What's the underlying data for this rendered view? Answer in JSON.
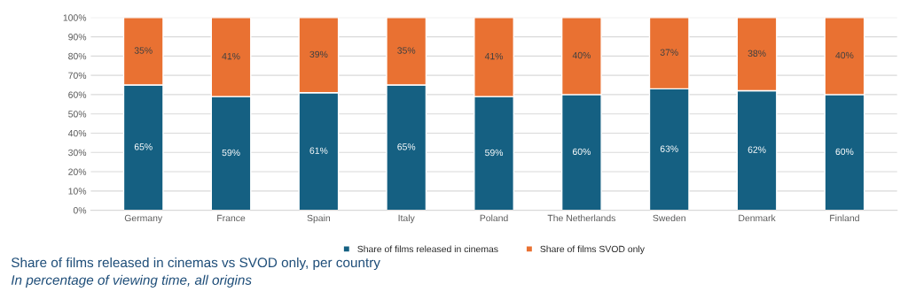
{
  "chart_data": {
    "type": "bar",
    "stacked": true,
    "title": "Share of films released in cinemas vs SVOD only, per country",
    "subtitle": "In percentage of viewing time, all origins",
    "categories": [
      "Germany",
      "France",
      "Spain",
      "Italy",
      "Poland",
      "The Netherlands",
      "Sweden",
      "Denmark",
      "Finland"
    ],
    "series": [
      {
        "name": "Share of films released in cinemas",
        "color": "#156082",
        "values": [
          65,
          59,
          61,
          65,
          59,
          60,
          63,
          62,
          60
        ],
        "value_labels": [
          "65%",
          "59%",
          "61%",
          "65%",
          "59%",
          "60%",
          "63%",
          "62%",
          "60%"
        ]
      },
      {
        "name": "Share of films SVOD only",
        "color": "#e97132",
        "values": [
          35,
          41,
          39,
          35,
          41,
          40,
          37,
          38,
          40
        ],
        "value_labels": [
          "35%",
          "41%",
          "39%",
          "35%",
          "41%",
          "40%",
          "37%",
          "38%",
          "40%"
        ]
      }
    ],
    "ylim": [
      0,
      100
    ],
    "yticks": [
      {
        "value": 0,
        "label": "0%"
      },
      {
        "value": 10,
        "label": "10%"
      },
      {
        "value": 20,
        "label": "20%"
      },
      {
        "value": 30,
        "label": "30%"
      },
      {
        "value": 40,
        "label": "40%"
      },
      {
        "value": 50,
        "label": "50%"
      },
      {
        "value": 60,
        "label": "60%"
      },
      {
        "value": 70,
        "label": "70%"
      },
      {
        "value": 80,
        "label": "80%"
      },
      {
        "value": 90,
        "label": "90%"
      },
      {
        "value": 100,
        "label": "100%"
      }
    ],
    "grid": "y",
    "legend": "bottom"
  }
}
